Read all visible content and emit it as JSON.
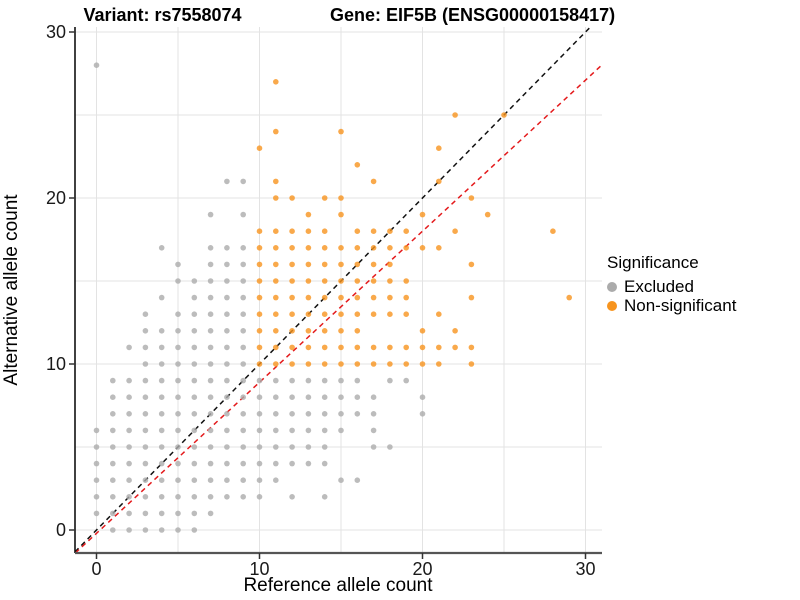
{
  "titles": {
    "left": "Variant: rs7558074",
    "right": "Gene: EIF5B (ENSG00000158417)"
  },
  "legend": {
    "title": "Significance",
    "items": [
      {
        "label": "Excluded",
        "color": "#ababab"
      },
      {
        "label": "Non-significant",
        "color": "#f7941e"
      }
    ]
  },
  "chart_data": {
    "type": "scatter",
    "xlabel": "Reference allele count",
    "ylabel": "Alternative allele count",
    "xlim": [
      -1.32,
      31.05
    ],
    "ylim": [
      -1.39,
      30.3
    ],
    "x_ticks": [
      0,
      10,
      20,
      30
    ],
    "y_ticks": [
      0,
      10,
      20,
      30
    ],
    "x_minor": [
      5,
      15,
      25
    ],
    "y_minor": [
      5,
      15,
      25
    ],
    "grid": true,
    "legend_position": "right",
    "point_colors": {
      "excluded": "#ababab",
      "non_significant": "#f7941e"
    },
    "lines": [
      {
        "name": "identity-line",
        "slope": 1.0,
        "intercept": 0.0,
        "color": "#111111",
        "dash": "5,4"
      },
      {
        "name": "ratio-line",
        "slope": 0.91,
        "intercept": -0.2,
        "color": "#e41a1c",
        "dash": "5,4"
      }
    ],
    "series": [
      {
        "name": "Excluded",
        "points": [
          [
            1,
            0
          ],
          [
            2,
            0
          ],
          [
            3,
            0
          ],
          [
            4,
            0
          ],
          [
            5,
            0
          ],
          [
            6,
            0
          ],
          [
            0,
            1
          ],
          [
            1,
            1
          ],
          [
            2,
            1
          ],
          [
            3,
            1
          ],
          [
            4,
            1
          ],
          [
            5,
            1
          ],
          [
            6,
            1
          ],
          [
            7,
            1
          ],
          [
            0,
            2
          ],
          [
            1,
            2
          ],
          [
            2,
            2
          ],
          [
            3,
            2
          ],
          [
            4,
            2
          ],
          [
            5,
            2
          ],
          [
            6,
            2
          ],
          [
            7,
            2
          ],
          [
            8,
            2
          ],
          [
            9,
            2
          ],
          [
            10,
            2
          ],
          [
            12,
            2
          ],
          [
            14,
            2
          ],
          [
            0,
            3
          ],
          [
            1,
            3
          ],
          [
            2,
            3
          ],
          [
            3,
            3
          ],
          [
            4,
            3
          ],
          [
            5,
            3
          ],
          [
            6,
            3
          ],
          [
            7,
            3
          ],
          [
            8,
            3
          ],
          [
            9,
            3
          ],
          [
            10,
            3
          ],
          [
            11,
            3
          ],
          [
            15,
            3
          ],
          [
            16,
            3
          ],
          [
            0,
            4
          ],
          [
            1,
            4
          ],
          [
            2,
            4
          ],
          [
            3,
            4
          ],
          [
            4,
            4
          ],
          [
            5,
            4
          ],
          [
            6,
            4
          ],
          [
            7,
            4
          ],
          [
            8,
            4
          ],
          [
            9,
            4
          ],
          [
            10,
            4
          ],
          [
            11,
            4
          ],
          [
            12,
            4
          ],
          [
            13,
            4
          ],
          [
            14,
            4
          ],
          [
            0,
            5
          ],
          [
            1,
            5
          ],
          [
            2,
            5
          ],
          [
            3,
            5
          ],
          [
            4,
            5
          ],
          [
            5,
            5
          ],
          [
            6,
            5
          ],
          [
            7,
            5
          ],
          [
            8,
            5
          ],
          [
            9,
            5
          ],
          [
            10,
            5
          ],
          [
            11,
            5
          ],
          [
            12,
            5
          ],
          [
            13,
            5
          ],
          [
            14,
            5
          ],
          [
            17,
            5
          ],
          [
            18,
            5
          ],
          [
            0,
            6
          ],
          [
            1,
            6
          ],
          [
            2,
            6
          ],
          [
            3,
            6
          ],
          [
            4,
            6
          ],
          [
            5,
            6
          ],
          [
            6,
            6
          ],
          [
            7,
            6
          ],
          [
            8,
            6
          ],
          [
            9,
            6
          ],
          [
            10,
            6
          ],
          [
            11,
            6
          ],
          [
            12,
            6
          ],
          [
            13,
            6
          ],
          [
            14,
            6
          ],
          [
            15,
            6
          ],
          [
            17,
            6
          ],
          [
            1,
            7
          ],
          [
            2,
            7
          ],
          [
            3,
            7
          ],
          [
            4,
            7
          ],
          [
            5,
            7
          ],
          [
            6,
            7
          ],
          [
            7,
            7
          ],
          [
            8,
            7
          ],
          [
            9,
            7
          ],
          [
            10,
            7
          ],
          [
            11,
            7
          ],
          [
            12,
            7
          ],
          [
            13,
            7
          ],
          [
            14,
            7
          ],
          [
            15,
            7
          ],
          [
            16,
            7
          ],
          [
            17,
            7
          ],
          [
            20,
            7
          ],
          [
            1,
            8
          ],
          [
            2,
            8
          ],
          [
            3,
            8
          ],
          [
            4,
            8
          ],
          [
            5,
            8
          ],
          [
            6,
            8
          ],
          [
            7,
            8
          ],
          [
            8,
            8
          ],
          [
            9,
            8
          ],
          [
            10,
            8
          ],
          [
            11,
            8
          ],
          [
            12,
            8
          ],
          [
            13,
            8
          ],
          [
            14,
            8
          ],
          [
            15,
            8
          ],
          [
            16,
            8
          ],
          [
            17,
            8
          ],
          [
            20,
            8
          ],
          [
            1,
            9
          ],
          [
            2,
            9
          ],
          [
            3,
            9
          ],
          [
            4,
            9
          ],
          [
            5,
            9
          ],
          [
            6,
            9
          ],
          [
            7,
            9
          ],
          [
            8,
            9
          ],
          [
            9,
            9
          ],
          [
            10,
            9
          ],
          [
            11,
            9
          ],
          [
            12,
            9
          ],
          [
            13,
            9
          ],
          [
            14,
            9
          ],
          [
            15,
            9
          ],
          [
            16,
            9
          ],
          [
            18,
            9
          ],
          [
            19,
            9
          ],
          [
            3,
            10
          ],
          [
            4,
            10
          ],
          [
            5,
            10
          ],
          [
            6,
            10
          ],
          [
            7,
            10
          ],
          [
            8,
            10
          ],
          [
            9,
            10
          ],
          [
            2,
            11
          ],
          [
            3,
            11
          ],
          [
            4,
            11
          ],
          [
            5,
            11
          ],
          [
            6,
            11
          ],
          [
            7,
            11
          ],
          [
            8,
            11
          ],
          [
            9,
            11
          ],
          [
            3,
            12
          ],
          [
            4,
            12
          ],
          [
            5,
            12
          ],
          [
            6,
            12
          ],
          [
            7,
            12
          ],
          [
            8,
            12
          ],
          [
            9,
            12
          ],
          [
            3,
            13
          ],
          [
            5,
            13
          ],
          [
            6,
            13
          ],
          [
            7,
            13
          ],
          [
            8,
            13
          ],
          [
            9,
            13
          ],
          [
            4,
            14
          ],
          [
            6,
            14
          ],
          [
            7,
            14
          ],
          [
            8,
            14
          ],
          [
            9,
            14
          ],
          [
            5,
            15
          ],
          [
            6,
            15
          ],
          [
            7,
            15
          ],
          [
            8,
            15
          ],
          [
            9,
            15
          ],
          [
            5,
            16
          ],
          [
            7,
            16
          ],
          [
            8,
            16
          ],
          [
            9,
            16
          ],
          [
            4,
            17
          ],
          [
            7,
            17
          ],
          [
            8,
            17
          ],
          [
            9,
            17
          ],
          [
            7,
            19
          ],
          [
            9,
            19
          ],
          [
            8,
            21
          ],
          [
            9,
            21
          ],
          [
            0,
            28
          ]
        ]
      },
      {
        "name": "Non-significant",
        "points": [
          [
            10,
            10
          ],
          [
            11,
            10
          ],
          [
            12,
            10
          ],
          [
            13,
            10
          ],
          [
            14,
            10
          ],
          [
            15,
            10
          ],
          [
            16,
            10
          ],
          [
            17,
            10
          ],
          [
            18,
            10
          ],
          [
            19,
            10
          ],
          [
            20,
            10
          ],
          [
            21,
            10
          ],
          [
            23,
            10
          ],
          [
            10,
            11
          ],
          [
            11,
            11
          ],
          [
            12,
            11
          ],
          [
            13,
            11
          ],
          [
            14,
            11
          ],
          [
            15,
            11
          ],
          [
            16,
            11
          ],
          [
            17,
            11
          ],
          [
            18,
            11
          ],
          [
            19,
            11
          ],
          [
            20,
            11
          ],
          [
            21,
            11
          ],
          [
            22,
            11
          ],
          [
            23,
            11
          ],
          [
            10,
            12
          ],
          [
            11,
            12
          ],
          [
            12,
            12
          ],
          [
            13,
            12
          ],
          [
            14,
            12
          ],
          [
            15,
            12
          ],
          [
            16,
            12
          ],
          [
            20,
            12
          ],
          [
            22,
            12
          ],
          [
            10,
            13
          ],
          [
            11,
            13
          ],
          [
            12,
            13
          ],
          [
            13,
            13
          ],
          [
            14,
            13
          ],
          [
            15,
            13
          ],
          [
            16,
            13
          ],
          [
            17,
            13
          ],
          [
            18,
            13
          ],
          [
            19,
            13
          ],
          [
            21,
            13
          ],
          [
            10,
            14
          ],
          [
            11,
            14
          ],
          [
            12,
            14
          ],
          [
            13,
            14
          ],
          [
            14,
            14
          ],
          [
            15,
            14
          ],
          [
            16,
            14
          ],
          [
            17,
            14
          ],
          [
            18,
            14
          ],
          [
            19,
            14
          ],
          [
            23,
            14
          ],
          [
            29,
            14
          ],
          [
            10,
            15
          ],
          [
            11,
            15
          ],
          [
            12,
            15
          ],
          [
            13,
            15
          ],
          [
            14,
            15
          ],
          [
            15,
            15
          ],
          [
            16,
            15
          ],
          [
            17,
            15
          ],
          [
            18,
            15
          ],
          [
            19,
            15
          ],
          [
            10,
            16
          ],
          [
            11,
            16
          ],
          [
            12,
            16
          ],
          [
            13,
            16
          ],
          [
            14,
            16
          ],
          [
            15,
            16
          ],
          [
            16,
            16
          ],
          [
            17,
            16
          ],
          [
            18,
            16
          ],
          [
            23,
            16
          ],
          [
            10,
            17
          ],
          [
            11,
            17
          ],
          [
            12,
            17
          ],
          [
            13,
            17
          ],
          [
            14,
            17
          ],
          [
            15,
            17
          ],
          [
            16,
            17
          ],
          [
            17,
            17
          ],
          [
            18,
            17
          ],
          [
            19,
            17
          ],
          [
            20,
            17
          ],
          [
            21,
            17
          ],
          [
            10,
            18
          ],
          [
            11,
            18
          ],
          [
            12,
            18
          ],
          [
            13,
            18
          ],
          [
            14,
            18
          ],
          [
            16,
            18
          ],
          [
            17,
            18
          ],
          [
            18,
            18
          ],
          [
            19,
            18
          ],
          [
            22,
            18
          ],
          [
            28,
            18
          ],
          [
            13,
            19
          ],
          [
            15,
            19
          ],
          [
            20,
            19
          ],
          [
            24,
            19
          ],
          [
            11,
            20
          ],
          [
            12,
            20
          ],
          [
            14,
            20
          ],
          [
            15,
            20
          ],
          [
            23,
            20
          ],
          [
            11,
            21
          ],
          [
            17,
            21
          ],
          [
            21,
            21
          ],
          [
            16,
            22
          ],
          [
            10,
            23
          ],
          [
            21,
            23
          ],
          [
            11,
            24
          ],
          [
            15,
            24
          ],
          [
            22,
            25
          ],
          [
            25,
            25
          ],
          [
            11,
            27
          ]
        ]
      }
    ]
  }
}
